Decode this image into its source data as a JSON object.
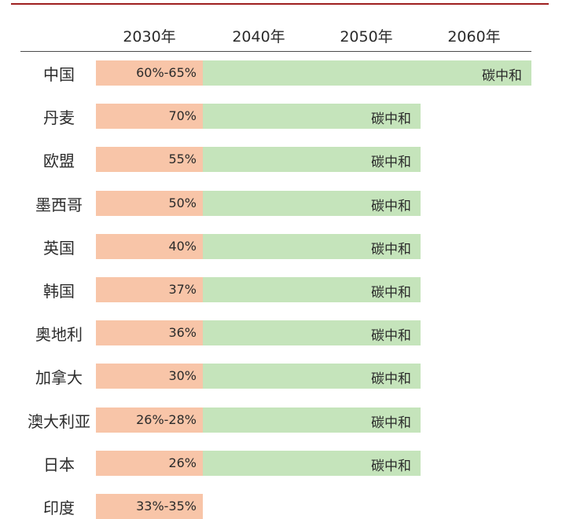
{
  "chart_data": {
    "type": "table",
    "columns": [
      "2030年",
      "2040年",
      "2050年",
      "2060年"
    ],
    "colors": {
      "target2030": "#f8c5a8",
      "carbon_neutral": "#c5e4bb",
      "top_rule": "#9e1f1f"
    },
    "rows": [
      {
        "country": "中国",
        "target_2030": "60%-65%",
        "neutral_label": "碳中和",
        "neutral_year": 2060
      },
      {
        "country": "丹麦",
        "target_2030": "70%",
        "neutral_label": "碳中和",
        "neutral_year": 2050
      },
      {
        "country": "欧盟",
        "target_2030": "55%",
        "neutral_label": "碳中和",
        "neutral_year": 2050
      },
      {
        "country": "墨西哥",
        "target_2030": "50%",
        "neutral_label": "碳中和",
        "neutral_year": 2050
      },
      {
        "country": "英国",
        "target_2030": "40%",
        "neutral_label": "碳中和",
        "neutral_year": 2050
      },
      {
        "country": "韩国",
        "target_2030": "37%",
        "neutral_label": "碳中和",
        "neutral_year": 2050
      },
      {
        "country": "奥地利",
        "target_2030": "36%",
        "neutral_label": "碳中和",
        "neutral_year": 2050
      },
      {
        "country": "加拿大",
        "target_2030": "30%",
        "neutral_label": "碳中和",
        "neutral_year": 2050
      },
      {
        "country": "澳大利亚",
        "target_2030": "26%-28%",
        "neutral_label": "碳中和",
        "neutral_year": 2050
      },
      {
        "country": "日本",
        "target_2030": "26%",
        "neutral_label": "碳中和",
        "neutral_year": 2050
      },
      {
        "country": "印度",
        "target_2030": "33%-35%",
        "neutral_label": "",
        "neutral_year": null
      }
    ]
  }
}
